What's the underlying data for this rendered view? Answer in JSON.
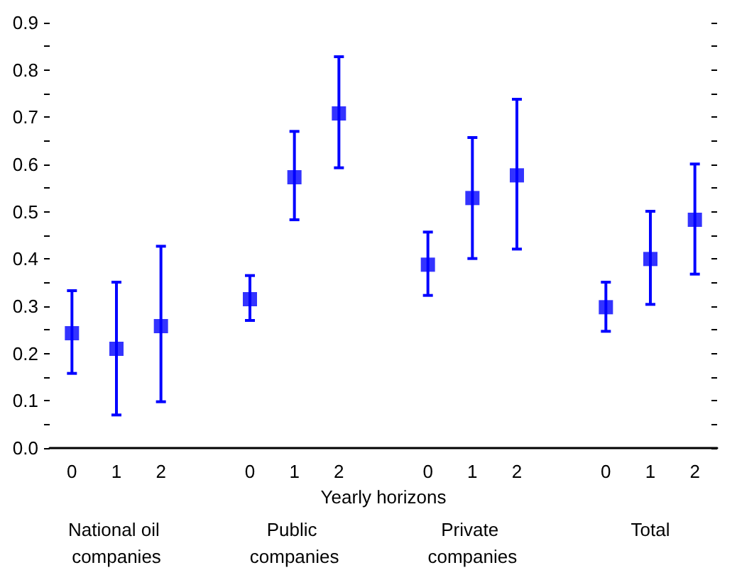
{
  "chart_data": {
    "type": "scatter",
    "xlabel": "Yearly horizons",
    "categories": [
      "0",
      "1",
      "2",
      null,
      "0",
      "1",
      "2",
      null,
      "0",
      "1",
      "2",
      null,
      "0",
      "1",
      "2"
    ],
    "series": [
      {
        "color": "#0000ff",
        "values": [
          0.243,
          0.21,
          0.258,
          null,
          0.315,
          0.573,
          0.708,
          null,
          0.388,
          0.529,
          0.577,
          null,
          0.298,
          0.4,
          0.483
        ],
        "errors": [
          [
            0.158,
            0.333
          ],
          [
            0.07,
            0.351
          ],
          [
            0.098,
            0.427
          ],
          null,
          [
            0.27,
            0.365
          ],
          [
            0.483,
            0.67
          ],
          [
            0.593,
            0.828
          ],
          null,
          [
            0.323,
            0.457
          ],
          [
            0.401,
            0.657
          ],
          [
            0.421,
            0.738
          ],
          null,
          [
            0.247,
            0.351
          ],
          [
            0.304,
            0.501
          ],
          [
            0.368,
            0.601
          ]
        ]
      }
    ],
    "annotations": [
      "National oil companies",
      "Public companies",
      "Private companies",
      "Total"
    ],
    "ylim": [
      0,
      0.9
    ],
    "yticks": [
      {
        "value": 0,
        "label": "0.0"
      },
      {
        "value": 0.05,
        "label": null
      },
      {
        "value": 0.1,
        "label": "0.1"
      },
      {
        "value": 0.15,
        "label": null
      },
      {
        "value": 0.2,
        "label": "0.2"
      },
      {
        "value": 0.25,
        "label": null
      },
      {
        "value": 0.3,
        "label": "0.3"
      },
      {
        "value": 0.35,
        "label": null
      },
      {
        "value": 0.4,
        "label": "0.4"
      },
      {
        "value": 0.45,
        "label": null
      },
      {
        "value": 0.5,
        "label": "0.5"
      },
      {
        "value": 0.55,
        "label": null
      },
      {
        "value": 0.6,
        "label": "0.6"
      },
      {
        "value": 0.65,
        "label": null
      },
      {
        "value": 0.7,
        "label": "0.7"
      },
      {
        "value": 0.75,
        "label": null
      },
      {
        "value": 0.8,
        "label": "0.8"
      },
      {
        "value": 0.85,
        "label": null
      },
      {
        "value": 0.9,
        "label": "0.9"
      }
    ],
    "marker": "square"
  }
}
